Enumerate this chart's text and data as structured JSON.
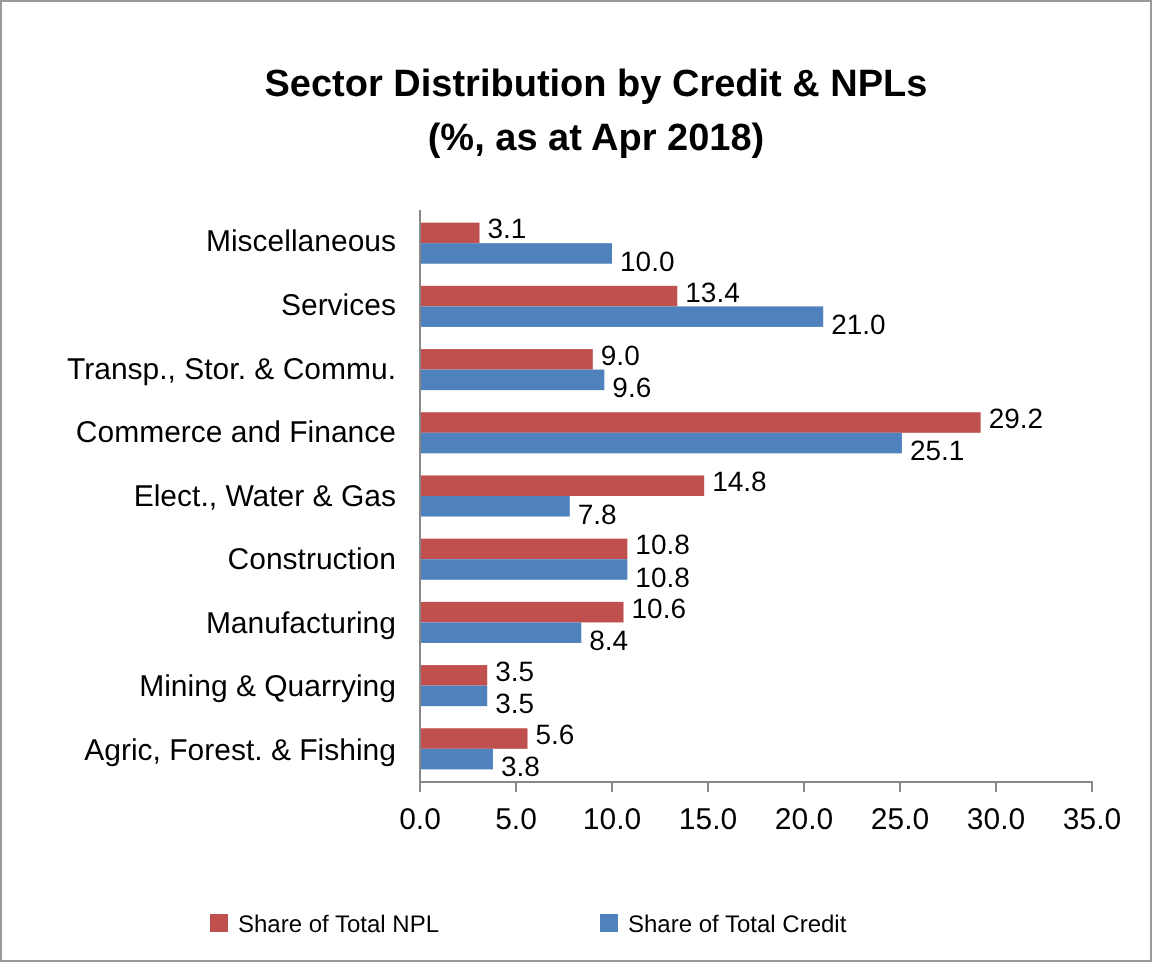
{
  "chart_data": {
    "type": "bar",
    "orientation": "horizontal",
    "title": "Sector Distribution by Credit & NPLs\n(%, as at Apr 2018)",
    "categories": [
      "Miscellaneous",
      "Services",
      "Transp., Stor. & Commu.",
      "Commerce and Finance",
      "Elect., Water & Gas",
      "Construction",
      "Manufacturing",
      "Mining & Quarrying",
      "Agric, Forest. & Fishing"
    ],
    "series": [
      {
        "name": "Share of Total NPL",
        "color": "#c0504d",
        "values": [
          3.1,
          13.4,
          9.0,
          29.2,
          14.8,
          10.8,
          10.6,
          3.5,
          5.6
        ],
        "value_labels": [
          "3.1",
          "13.4",
          "9.0",
          "29.2",
          "14.8",
          "10.8",
          "10.6",
          "3.5",
          "5.6"
        ]
      },
      {
        "name": "Share of Total Credit",
        "color": "#4f81bd",
        "values": [
          10.0,
          21.0,
          9.6,
          25.1,
          7.8,
          10.8,
          8.4,
          3.5,
          3.8
        ],
        "value_labels": [
          "10.0",
          "21.0",
          "9.6",
          "25.1",
          "7.8",
          "10.8",
          "8.4",
          "3.5",
          "3.8"
        ]
      }
    ],
    "xlim": [
      0,
      35
    ],
    "xticks": [
      {
        "value": 0,
        "label": "0.0"
      },
      {
        "value": 5,
        "label": "5.0"
      },
      {
        "value": 10,
        "label": "10.0"
      },
      {
        "value": 15,
        "label": "15.0"
      },
      {
        "value": 20,
        "label": "20.0"
      },
      {
        "value": 25,
        "label": "25.0"
      },
      {
        "value": 30,
        "label": "30.0"
      },
      {
        "value": 35,
        "label": "35.0"
      }
    ],
    "legend": "bottom"
  }
}
